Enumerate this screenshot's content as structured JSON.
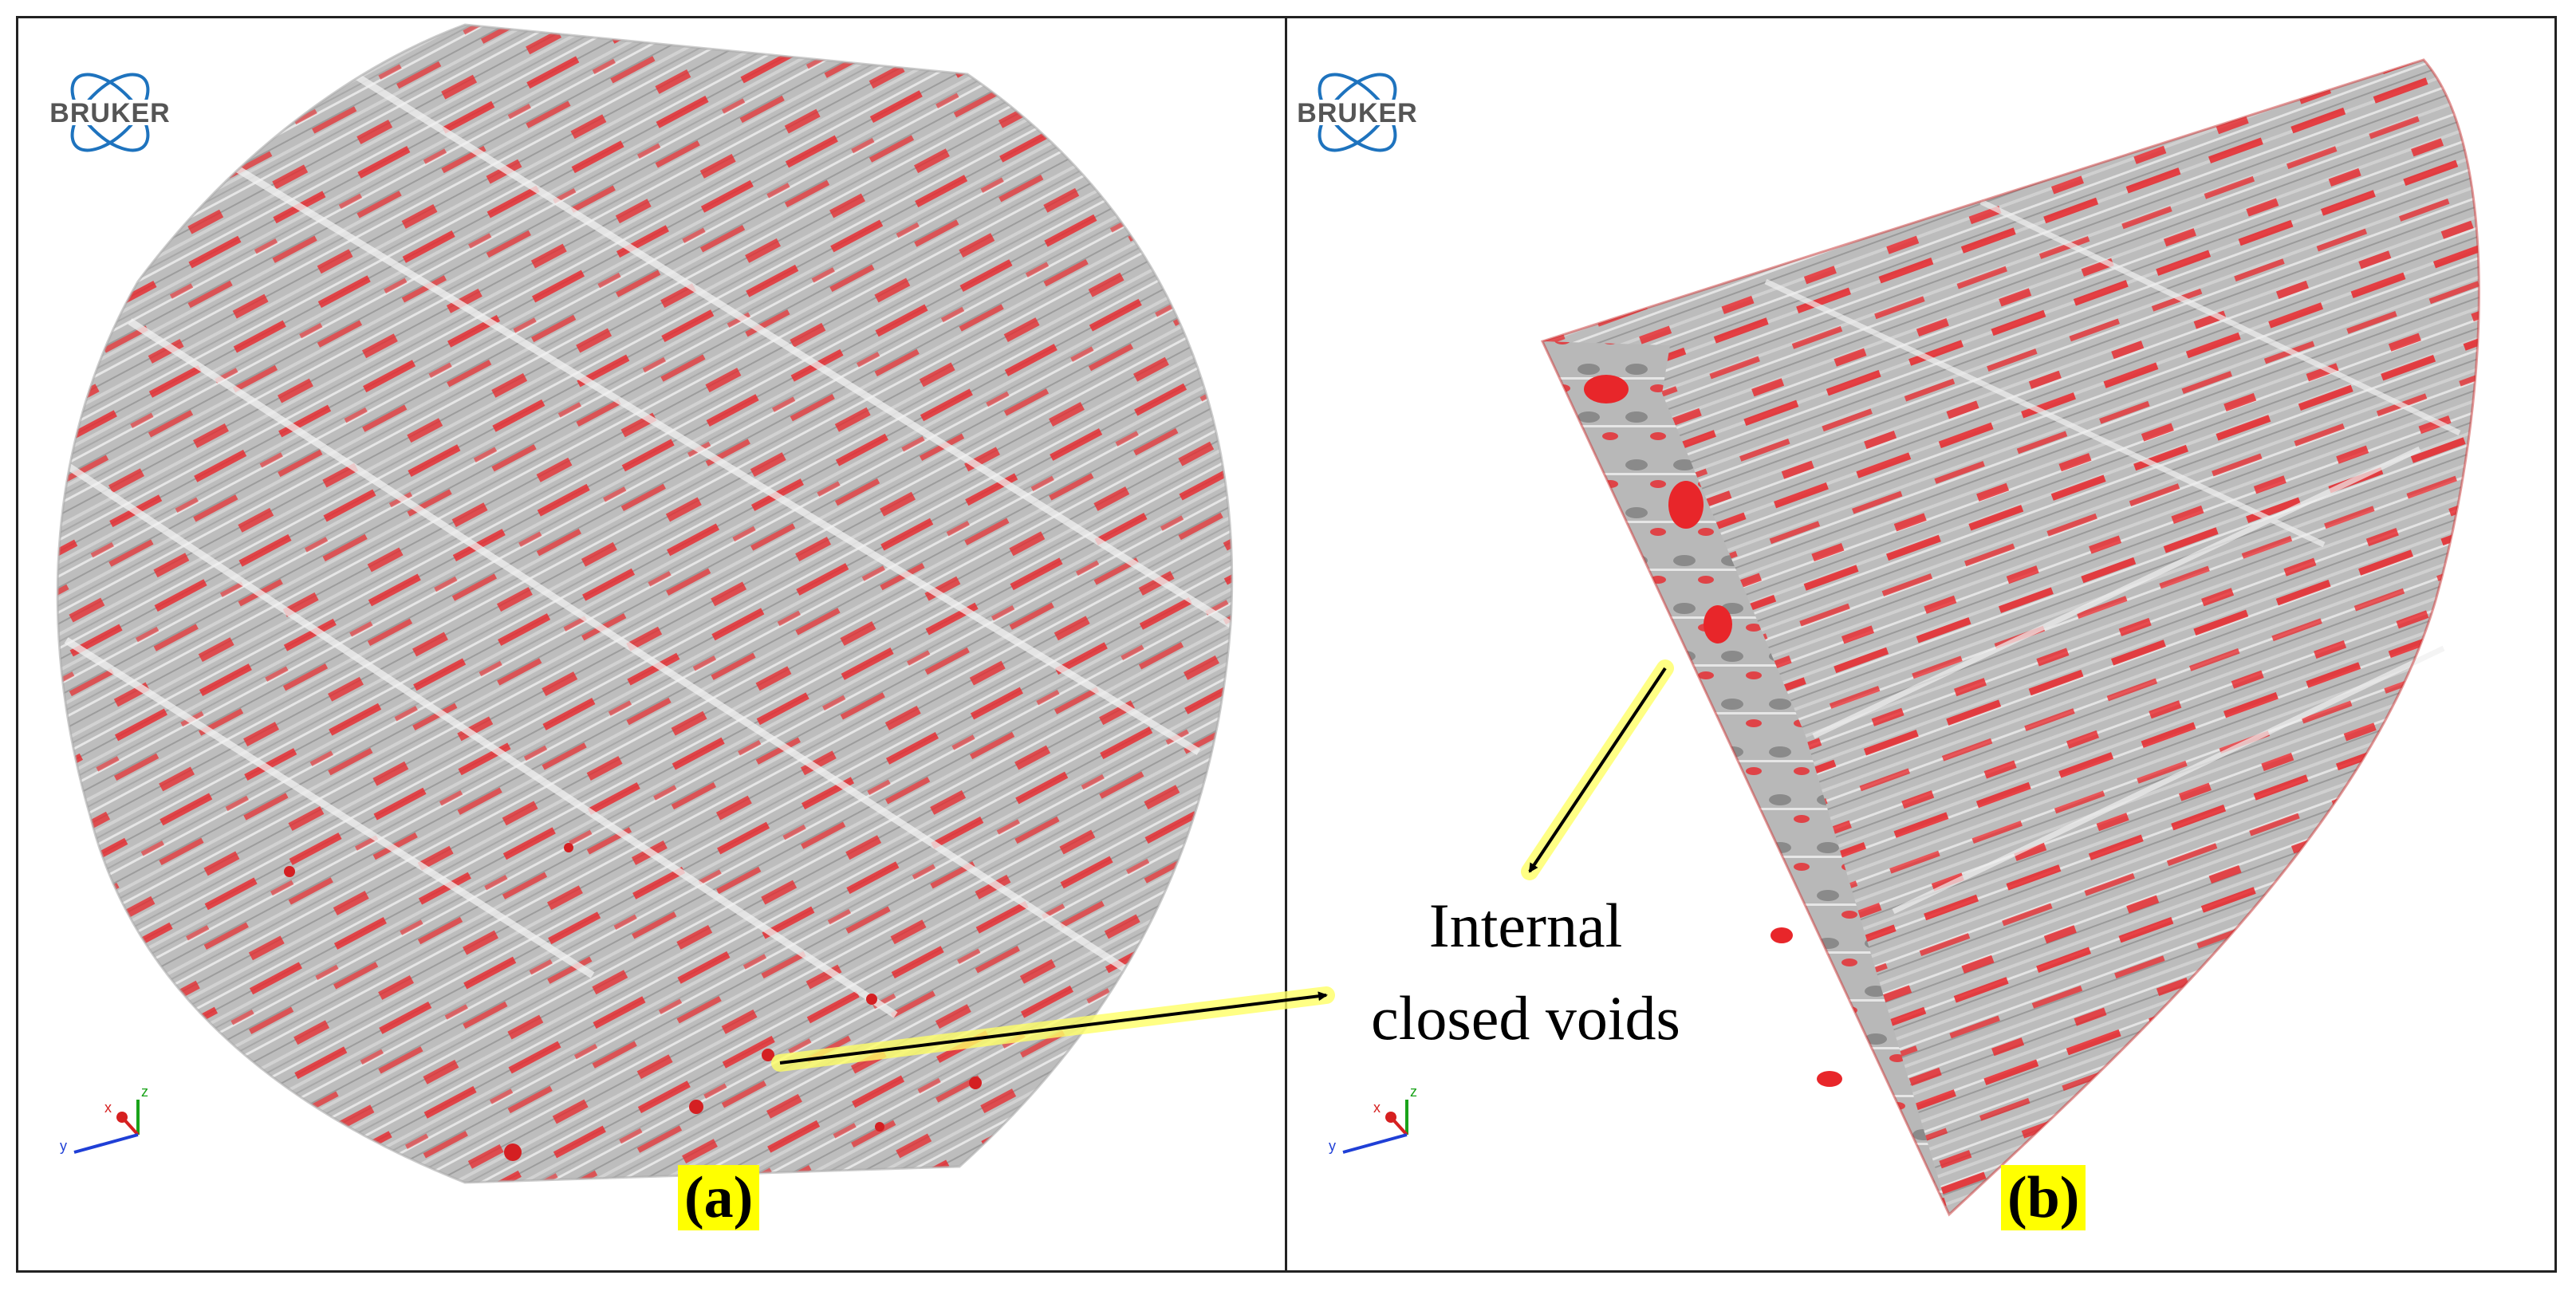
{
  "logo": {
    "text": "BRUKER",
    "brand_color": "#1e73be"
  },
  "panels": [
    {
      "label": "(a)",
      "view": "top-view-disc"
    },
    {
      "label": "(b)",
      "view": "wedge-section"
    }
  ],
  "annotation": {
    "line1": "Internal",
    "line2": "closed voids",
    "highlight_color": "#ffff66"
  },
  "axis_triad": {
    "x_label": "x",
    "y_label": "y",
    "z_label": "z",
    "x_color": "#d62020",
    "y_color": "#1f3fd6",
    "z_color": "#1aa31a"
  },
  "colors": {
    "material": "#c8c8c8",
    "void": "#e8262a",
    "frame": "#222222"
  }
}
